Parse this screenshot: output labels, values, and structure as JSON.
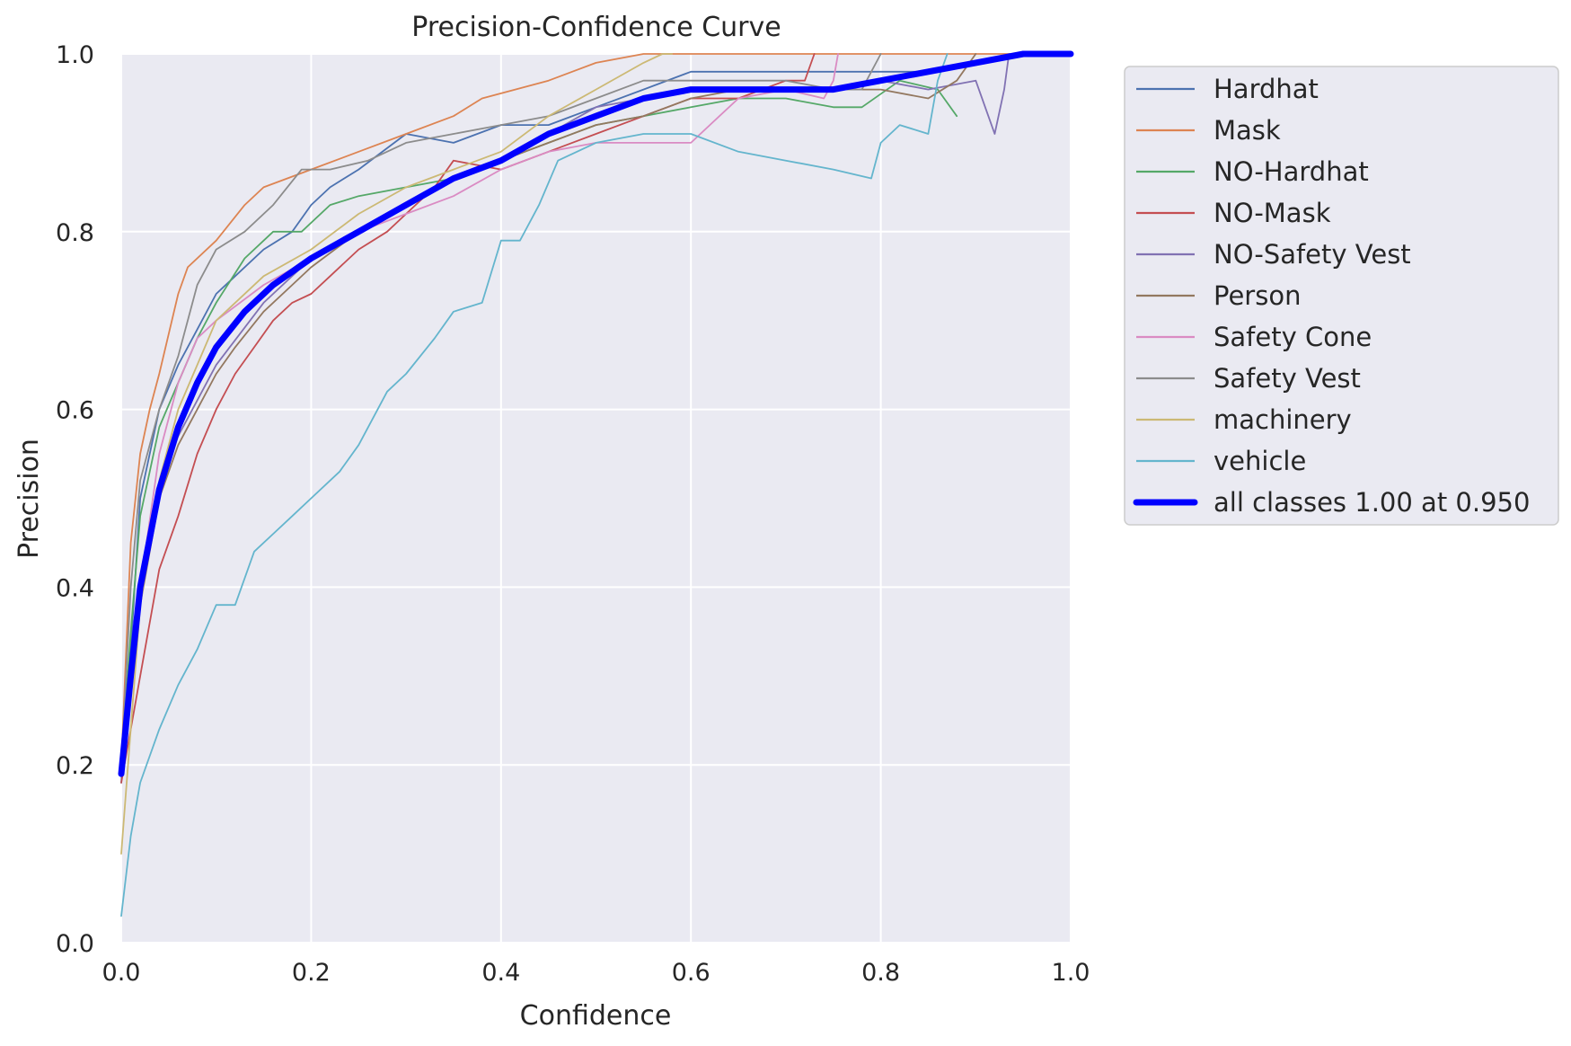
{
  "chart_data": {
    "type": "line",
    "title": "Precision-Confidence Curve",
    "xlabel": "Confidence",
    "ylabel": "Precision",
    "xlim": [
      0,
      1
    ],
    "ylim": [
      0,
      1
    ],
    "xticks": [
      "0.0",
      "0.2",
      "0.4",
      "0.6",
      "0.8",
      "1.0"
    ],
    "yticks": [
      "0.0",
      "0.2",
      "0.4",
      "0.6",
      "0.8",
      "1.0"
    ],
    "grid": true,
    "legend_position": "outside-right",
    "series": [
      {
        "name": "Hardhat",
        "color": "#4c72b0",
        "bold": false,
        "x": [
          0.0,
          0.01,
          0.02,
          0.04,
          0.06,
          0.08,
          0.1,
          0.12,
          0.15,
          0.18,
          0.2,
          0.22,
          0.25,
          0.3,
          0.35,
          0.4,
          0.45,
          0.5,
          0.55,
          0.6,
          0.65,
          0.7,
          0.75,
          0.8,
          0.85,
          0.9,
          0.95,
          1.0
        ],
        "y": [
          0.18,
          0.33,
          0.5,
          0.6,
          0.65,
          0.69,
          0.73,
          0.75,
          0.78,
          0.8,
          0.83,
          0.85,
          0.87,
          0.91,
          0.9,
          0.92,
          0.92,
          0.94,
          0.96,
          0.98,
          0.98,
          0.98,
          0.98,
          0.98,
          0.98,
          0.99,
          1.0,
          1.0
        ]
      },
      {
        "name": "Mask",
        "color": "#dd8452",
        "bold": false,
        "x": [
          0.0,
          0.01,
          0.02,
          0.03,
          0.04,
          0.06,
          0.07,
          0.1,
          0.13,
          0.15,
          0.2,
          0.25,
          0.3,
          0.35,
          0.38,
          0.45,
          0.5,
          0.55,
          0.6,
          0.66,
          1.0
        ],
        "y": [
          0.2,
          0.45,
          0.55,
          0.6,
          0.64,
          0.73,
          0.76,
          0.79,
          0.83,
          0.85,
          0.87,
          0.89,
          0.91,
          0.93,
          0.95,
          0.97,
          0.99,
          1.0,
          1.0,
          1.0,
          1.0
        ]
      },
      {
        "name": "NO-Hardhat",
        "color": "#55a868",
        "bold": false,
        "x": [
          0.0,
          0.01,
          0.02,
          0.04,
          0.06,
          0.08,
          0.1,
          0.13,
          0.16,
          0.19,
          0.22,
          0.25,
          0.3,
          0.35,
          0.4,
          0.45,
          0.5,
          0.55,
          0.6,
          0.65,
          0.7,
          0.75,
          0.78,
          0.82,
          0.86,
          0.88
        ],
        "y": [
          0.2,
          0.35,
          0.48,
          0.58,
          0.63,
          0.68,
          0.72,
          0.77,
          0.8,
          0.8,
          0.83,
          0.84,
          0.85,
          0.86,
          0.88,
          0.9,
          0.92,
          0.93,
          0.94,
          0.95,
          0.95,
          0.94,
          0.94,
          0.97,
          0.96,
          0.93
        ]
      },
      {
        "name": "NO-Mask",
        "color": "#c44e52",
        "bold": false,
        "x": [
          0.0,
          0.02,
          0.04,
          0.06,
          0.08,
          0.1,
          0.12,
          0.14,
          0.16,
          0.18,
          0.2,
          0.22,
          0.25,
          0.28,
          0.3,
          0.33,
          0.35,
          0.4,
          0.45,
          0.5,
          0.55,
          0.6,
          0.65,
          0.7,
          0.72,
          0.73
        ],
        "y": [
          0.18,
          0.3,
          0.42,
          0.48,
          0.55,
          0.6,
          0.64,
          0.67,
          0.7,
          0.72,
          0.73,
          0.75,
          0.78,
          0.8,
          0.82,
          0.85,
          0.88,
          0.87,
          0.89,
          0.91,
          0.93,
          0.95,
          0.95,
          0.97,
          0.97,
          1.0
        ]
      },
      {
        "name": "NO-Safety Vest",
        "color": "#8172b3",
        "bold": false,
        "x": [
          0.0,
          0.02,
          0.05,
          0.1,
          0.15,
          0.2,
          0.25,
          0.3,
          0.35,
          0.4,
          0.45,
          0.5,
          0.55,
          0.6,
          0.65,
          0.7,
          0.75,
          0.8,
          0.85,
          0.9,
          0.92,
          0.93,
          0.935
        ],
        "y": [
          0.2,
          0.4,
          0.55,
          0.65,
          0.72,
          0.77,
          0.8,
          0.83,
          0.86,
          0.88,
          0.91,
          0.94,
          0.95,
          0.96,
          0.96,
          0.96,
          0.96,
          0.97,
          0.96,
          0.97,
          0.91,
          0.96,
          1.0
        ]
      },
      {
        "name": "Person",
        "color": "#937860",
        "bold": false,
        "x": [
          0.0,
          0.02,
          0.04,
          0.06,
          0.08,
          0.1,
          0.12,
          0.15,
          0.18,
          0.2,
          0.25,
          0.3,
          0.35,
          0.4,
          0.45,
          0.5,
          0.55,
          0.6,
          0.65,
          0.7,
          0.75,
          0.8,
          0.85,
          0.88,
          0.9
        ],
        "y": [
          0.2,
          0.38,
          0.5,
          0.56,
          0.6,
          0.64,
          0.67,
          0.71,
          0.74,
          0.76,
          0.8,
          0.83,
          0.86,
          0.88,
          0.9,
          0.92,
          0.93,
          0.95,
          0.96,
          0.96,
          0.96,
          0.96,
          0.95,
          0.97,
          1.0
        ]
      },
      {
        "name": "Safety Cone",
        "color": "#da8bc3",
        "bold": false,
        "x": [
          0.0,
          0.02,
          0.04,
          0.06,
          0.08,
          0.1,
          0.15,
          0.2,
          0.25,
          0.3,
          0.35,
          0.4,
          0.45,
          0.5,
          0.55,
          0.6,
          0.62,
          0.65,
          0.7,
          0.74,
          0.75,
          0.755
        ],
        "y": [
          0.2,
          0.4,
          0.55,
          0.63,
          0.68,
          0.7,
          0.74,
          0.77,
          0.8,
          0.82,
          0.84,
          0.87,
          0.89,
          0.9,
          0.9,
          0.9,
          0.92,
          0.95,
          0.96,
          0.95,
          0.97,
          1.0
        ]
      },
      {
        "name": "Safety Vest",
        "color": "#8c8c8c",
        "bold": false,
        "x": [
          0.0,
          0.01,
          0.02,
          0.04,
          0.06,
          0.08,
          0.1,
          0.13,
          0.16,
          0.19,
          0.22,
          0.26,
          0.3,
          0.35,
          0.4,
          0.45,
          0.5,
          0.55,
          0.6,
          0.65,
          0.7,
          0.75,
          0.78,
          0.79,
          0.8
        ],
        "y": [
          0.2,
          0.4,
          0.52,
          0.6,
          0.66,
          0.74,
          0.78,
          0.8,
          0.83,
          0.87,
          0.87,
          0.88,
          0.9,
          0.91,
          0.92,
          0.93,
          0.95,
          0.97,
          0.97,
          0.97,
          0.97,
          0.96,
          0.96,
          0.98,
          1.0
        ]
      },
      {
        "name": "machinery",
        "color": "#ccb974",
        "bold": false,
        "x": [
          0.0,
          0.02,
          0.04,
          0.06,
          0.08,
          0.1,
          0.15,
          0.2,
          0.25,
          0.3,
          0.35,
          0.4,
          0.45,
          0.5,
          0.55,
          0.57,
          0.58
        ],
        "y": [
          0.1,
          0.38,
          0.52,
          0.6,
          0.65,
          0.7,
          0.75,
          0.78,
          0.82,
          0.85,
          0.87,
          0.89,
          0.93,
          0.96,
          0.99,
          1.0,
          1.0
        ]
      },
      {
        "name": "vehicle",
        "color": "#64b5cd",
        "bold": false,
        "x": [
          0.0,
          0.01,
          0.02,
          0.04,
          0.06,
          0.08,
          0.1,
          0.12,
          0.14,
          0.16,
          0.18,
          0.2,
          0.23,
          0.25,
          0.28,
          0.3,
          0.33,
          0.35,
          0.38,
          0.4,
          0.42,
          0.44,
          0.46,
          0.5,
          0.55,
          0.6,
          0.65,
          0.7,
          0.75,
          0.79,
          0.8,
          0.82,
          0.85,
          0.86,
          0.87
        ],
        "y": [
          0.03,
          0.12,
          0.18,
          0.24,
          0.29,
          0.33,
          0.38,
          0.38,
          0.44,
          0.46,
          0.48,
          0.5,
          0.53,
          0.56,
          0.62,
          0.64,
          0.68,
          0.71,
          0.72,
          0.79,
          0.79,
          0.83,
          0.88,
          0.9,
          0.91,
          0.91,
          0.89,
          0.88,
          0.87,
          0.86,
          0.9,
          0.92,
          0.91,
          0.97,
          1.0
        ]
      },
      {
        "name": "all classes 1.00 at 0.950",
        "color": "#0000ff",
        "bold": true,
        "x": [
          0.0,
          0.01,
          0.02,
          0.04,
          0.06,
          0.08,
          0.1,
          0.13,
          0.16,
          0.2,
          0.25,
          0.3,
          0.35,
          0.4,
          0.45,
          0.5,
          0.55,
          0.6,
          0.65,
          0.7,
          0.75,
          0.8,
          0.85,
          0.9,
          0.95,
          1.0
        ],
        "y": [
          0.19,
          0.3,
          0.4,
          0.51,
          0.58,
          0.63,
          0.67,
          0.71,
          0.74,
          0.77,
          0.8,
          0.83,
          0.86,
          0.88,
          0.91,
          0.93,
          0.95,
          0.96,
          0.96,
          0.96,
          0.96,
          0.97,
          0.98,
          0.99,
          1.0,
          1.0
        ]
      }
    ]
  }
}
